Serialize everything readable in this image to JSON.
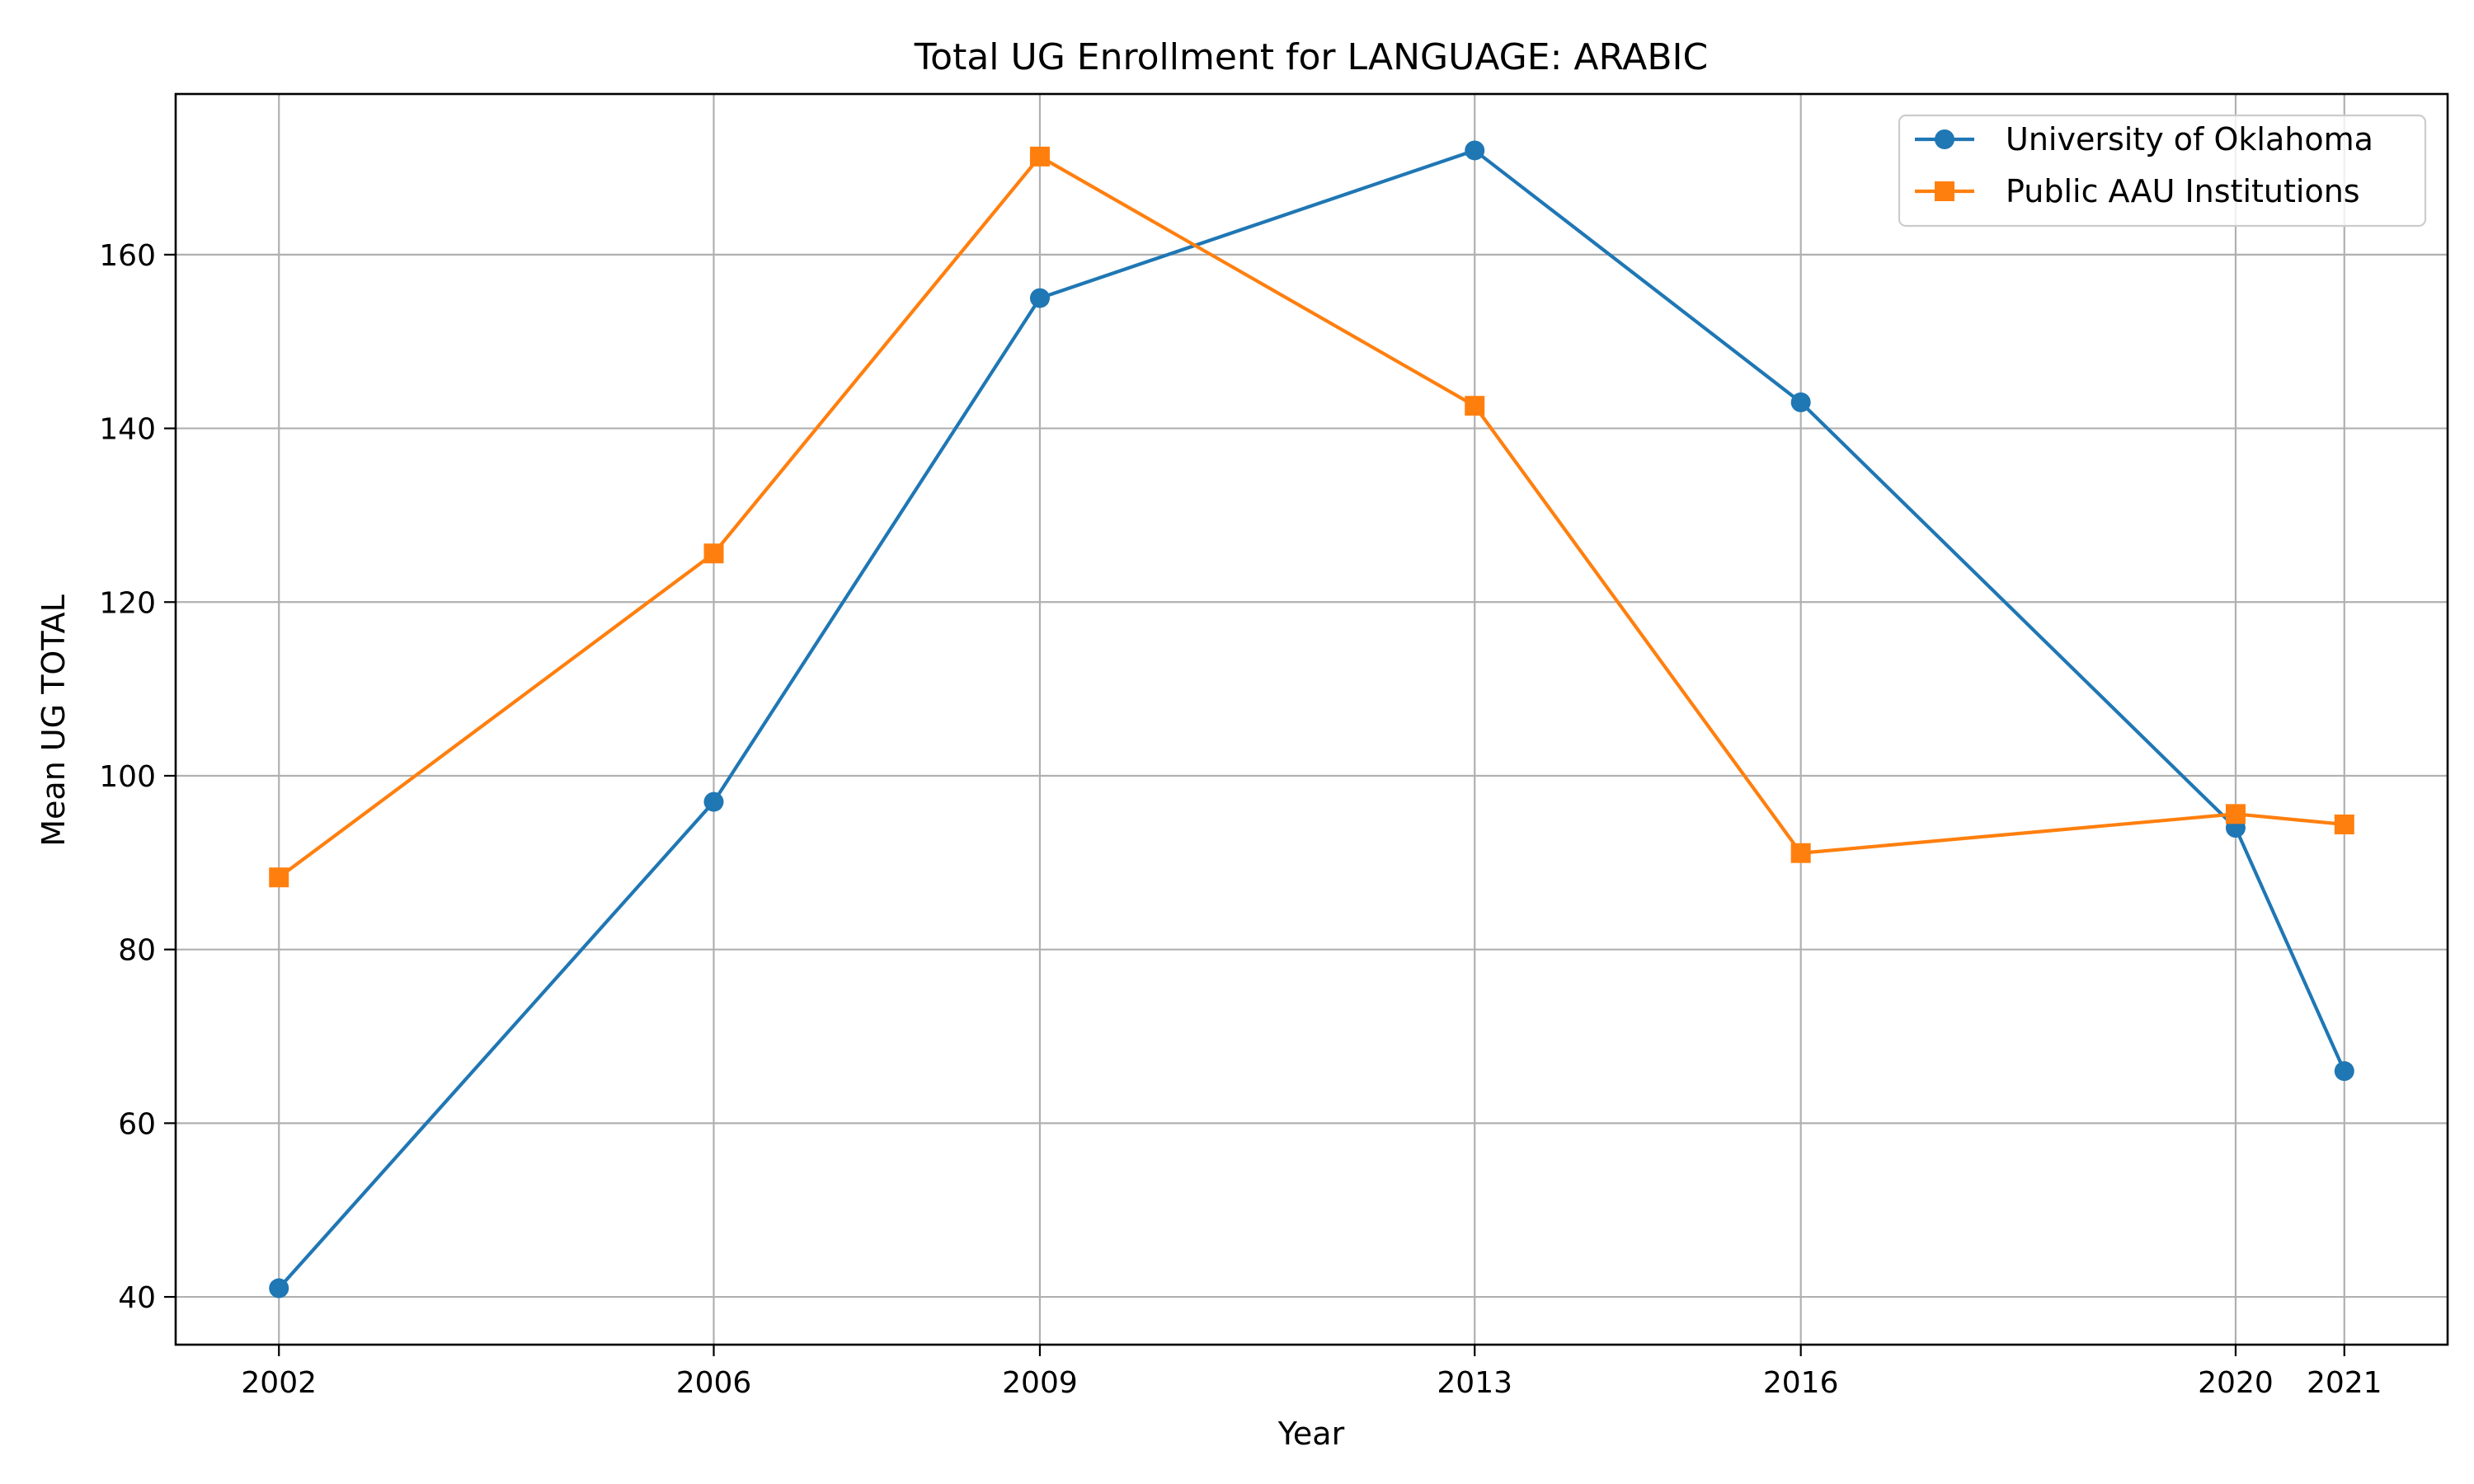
{
  "chart_data": {
    "type": "line",
    "title": "Total UG Enrollment for LANGUAGE: ARABIC",
    "xlabel": "Year",
    "ylabel": "Mean UG TOTAL",
    "x": [
      2002,
      2006,
      2009,
      2013,
      2016,
      2020,
      2021
    ],
    "x_tick_labels": [
      "2002",
      "2006",
      "2009",
      "2013",
      "2016",
      "2020",
      "2021"
    ],
    "xlim": [
      2001.05,
      2021.95
    ],
    "ylim": [
      34.5,
      178.5
    ],
    "y_ticks": [
      40,
      60,
      80,
      100,
      120,
      140,
      160
    ],
    "y_tick_labels": [
      "40",
      "60",
      "80",
      "100",
      "120",
      "140",
      "160"
    ],
    "grid": true,
    "legend_position": "top-right",
    "series": [
      {
        "name": "University of Oklahoma",
        "color": "#1f77b4",
        "marker": "circle",
        "values": [
          41,
          97,
          155,
          172,
          143,
          94,
          66
        ]
      },
      {
        "name": "Public AAU Institutions",
        "color": "#ff7f0e",
        "marker": "square",
        "values": [
          88.3,
          125.6,
          171.3,
          142.6,
          91.1,
          95.6,
          94.4
        ]
      }
    ]
  }
}
